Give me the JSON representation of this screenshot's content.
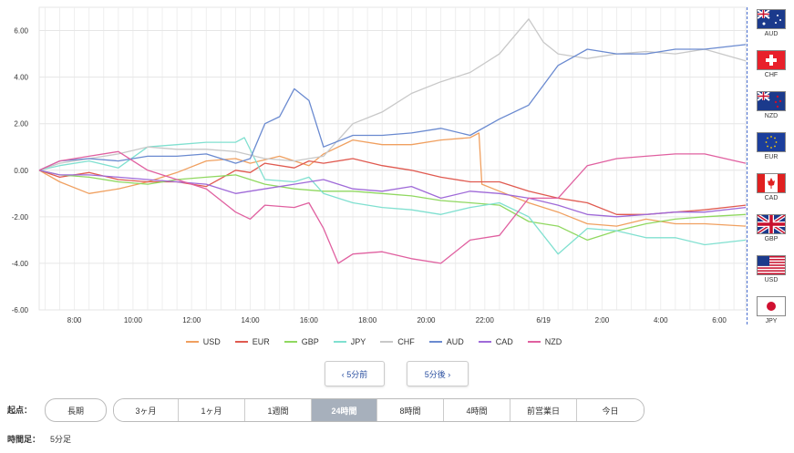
{
  "chart_data": {
    "type": "line",
    "ylim": [
      -6,
      7
    ],
    "yticks": [
      "6.00",
      "4.00",
      "2.00",
      "0.00",
      "-2.00",
      "-4.00",
      "-6.00"
    ],
    "ytick_values": [
      6,
      4,
      2,
      0,
      -2,
      -4,
      -6
    ],
    "xticks": [
      {
        "label": "8:00",
        "x": 1.5
      },
      {
        "label": "10:00",
        "x": 3.5
      },
      {
        "label": "12:00",
        "x": 5.5
      },
      {
        "label": "14:00",
        "x": 7.5
      },
      {
        "label": "16:00",
        "x": 9.5
      },
      {
        "label": "18:00",
        "x": 11.5
      },
      {
        "label": "20:00",
        "x": 13.5
      },
      {
        "label": "22:00",
        "x": 15.5
      },
      {
        "label": "6/19",
        "x": 17.5
      },
      {
        "label": "2:00",
        "x": 19.5
      },
      {
        "label": "4:00",
        "x": 21.5
      },
      {
        "label": "6:00",
        "x": 23.5
      }
    ],
    "xlim": [
      0.3,
      24.4
    ],
    "grid": true,
    "legend_position": "bottom",
    "series": [
      {
        "name": "USD",
        "color": "#f0a060",
        "points": [
          [
            0.3,
            0
          ],
          [
            1,
            -0.5
          ],
          [
            2,
            -1.0
          ],
          [
            3,
            -0.8
          ],
          [
            4,
            -0.5
          ],
          [
            5,
            -0.1
          ],
          [
            6,
            0.4
          ],
          [
            7,
            0.5
          ],
          [
            7.5,
            0.3
          ],
          [
            8.5,
            0.6
          ],
          [
            9.5,
            0.2
          ],
          [
            10,
            0.7
          ],
          [
            11,
            1.3
          ],
          [
            12,
            1.1
          ],
          [
            13,
            1.1
          ],
          [
            14,
            1.3
          ],
          [
            15,
            1.4
          ],
          [
            15.3,
            1.6
          ],
          [
            15.4,
            -0.6
          ],
          [
            16,
            -0.9
          ],
          [
            17,
            -1.4
          ],
          [
            18,
            -1.8
          ],
          [
            19,
            -2.3
          ],
          [
            20,
            -2.4
          ],
          [
            21,
            -2.1
          ],
          [
            22,
            -2.3
          ],
          [
            23,
            -2.3
          ],
          [
            24.4,
            -2.4
          ]
        ]
      },
      {
        "name": "EUR",
        "color": "#e05a50",
        "points": [
          [
            0.3,
            0
          ],
          [
            1,
            -0.3
          ],
          [
            2,
            -0.1
          ],
          [
            3,
            -0.4
          ],
          [
            4,
            -0.5
          ],
          [
            5,
            -0.5
          ],
          [
            6,
            -0.7
          ],
          [
            7,
            0.0
          ],
          [
            7.5,
            -0.1
          ],
          [
            8,
            0.3
          ],
          [
            9,
            0.1
          ],
          [
            9.5,
            0.4
          ],
          [
            10,
            0.3
          ],
          [
            11,
            0.5
          ],
          [
            12,
            0.2
          ],
          [
            13,
            0.0
          ],
          [
            14,
            -0.3
          ],
          [
            15,
            -0.5
          ],
          [
            16,
            -0.5
          ],
          [
            17,
            -0.9
          ],
          [
            18,
            -1.2
          ],
          [
            19,
            -1.4
          ],
          [
            20,
            -1.9
          ],
          [
            21,
            -1.9
          ],
          [
            22,
            -1.8
          ],
          [
            23,
            -1.7
          ],
          [
            24.4,
            -1.5
          ]
        ]
      },
      {
        "name": "GBP",
        "color": "#90d860",
        "points": [
          [
            0.3,
            0
          ],
          [
            1,
            -0.2
          ],
          [
            2,
            -0.3
          ],
          [
            3,
            -0.5
          ],
          [
            4,
            -0.6
          ],
          [
            5,
            -0.4
          ],
          [
            6,
            -0.3
          ],
          [
            7,
            -0.2
          ],
          [
            8,
            -0.6
          ],
          [
            9,
            -0.8
          ],
          [
            10,
            -0.9
          ],
          [
            11,
            -0.9
          ],
          [
            12,
            -1.0
          ],
          [
            13,
            -1.1
          ],
          [
            14,
            -1.3
          ],
          [
            15,
            -1.4
          ],
          [
            16,
            -1.5
          ],
          [
            17,
            -2.2
          ],
          [
            18,
            -2.4
          ],
          [
            19,
            -3.0
          ],
          [
            20,
            -2.6
          ],
          [
            21,
            -2.3
          ],
          [
            22,
            -2.1
          ],
          [
            23,
            -2.0
          ],
          [
            24.4,
            -1.9
          ]
        ]
      },
      {
        "name": "JPY",
        "color": "#80e0d0",
        "points": [
          [
            0.3,
            0
          ],
          [
            1,
            0.2
          ],
          [
            2,
            0.4
          ],
          [
            3,
            0.1
          ],
          [
            4,
            1.0
          ],
          [
            5,
            1.1
          ],
          [
            6,
            1.2
          ],
          [
            7,
            1.2
          ],
          [
            7.3,
            1.4
          ],
          [
            8,
            -0.4
          ],
          [
            9,
            -0.5
          ],
          [
            9.5,
            -0.3
          ],
          [
            10,
            -1.0
          ],
          [
            11,
            -1.4
          ],
          [
            12,
            -1.6
          ],
          [
            13,
            -1.7
          ],
          [
            14,
            -1.9
          ],
          [
            15,
            -1.6
          ],
          [
            16,
            -1.4
          ],
          [
            17,
            -2.0
          ],
          [
            18,
            -3.6
          ],
          [
            19,
            -2.5
          ],
          [
            20,
            -2.6
          ],
          [
            21,
            -2.9
          ],
          [
            22,
            -2.9
          ],
          [
            23,
            -3.2
          ],
          [
            24.4,
            -3.0
          ]
        ]
      },
      {
        "name": "CHF",
        "color": "#c8c8c8",
        "points": [
          [
            0.3,
            0
          ],
          [
            1,
            0.3
          ],
          [
            2,
            0.5
          ],
          [
            3,
            0.7
          ],
          [
            4,
            1.0
          ],
          [
            5,
            0.9
          ],
          [
            6,
            0.9
          ],
          [
            7,
            0.8
          ],
          [
            8,
            0.5
          ],
          [
            9,
            0.4
          ],
          [
            10,
            0.6
          ],
          [
            11,
            2.0
          ],
          [
            12,
            2.5
          ],
          [
            13,
            3.3
          ],
          [
            14,
            3.8
          ],
          [
            15,
            4.2
          ],
          [
            16,
            5.0
          ],
          [
            17,
            6.5
          ],
          [
            17.5,
            5.5
          ],
          [
            18,
            5.0
          ],
          [
            19,
            4.8
          ],
          [
            20,
            5.0
          ],
          [
            21,
            5.1
          ],
          [
            22,
            5.0
          ],
          [
            23,
            5.2
          ],
          [
            24.4,
            4.7
          ]
        ]
      },
      {
        "name": "AUD",
        "color": "#6a8ad0",
        "points": [
          [
            0.3,
            0
          ],
          [
            1,
            0.4
          ],
          [
            2,
            0.5
          ],
          [
            3,
            0.4
          ],
          [
            4,
            0.6
          ],
          [
            5,
            0.6
          ],
          [
            6,
            0.7
          ],
          [
            7,
            0.3
          ],
          [
            7.5,
            0.5
          ],
          [
            8,
            2.0
          ],
          [
            8.5,
            2.3
          ],
          [
            9,
            3.5
          ],
          [
            9.5,
            3.0
          ],
          [
            10,
            1.0
          ],
          [
            11,
            1.5
          ],
          [
            12,
            1.5
          ],
          [
            13,
            1.6
          ],
          [
            14,
            1.8
          ],
          [
            15,
            1.5
          ],
          [
            16,
            2.2
          ],
          [
            17,
            2.8
          ],
          [
            18,
            4.5
          ],
          [
            19,
            5.2
          ],
          [
            20,
            5.0
          ],
          [
            21,
            5.0
          ],
          [
            22,
            5.2
          ],
          [
            23,
            5.2
          ],
          [
            24.4,
            5.4
          ]
        ]
      },
      {
        "name": "CAD",
        "color": "#9f6ad8",
        "points": [
          [
            0.3,
            0
          ],
          [
            1,
            -0.2
          ],
          [
            2,
            -0.2
          ],
          [
            3,
            -0.3
          ],
          [
            4,
            -0.4
          ],
          [
            5,
            -0.5
          ],
          [
            6,
            -0.6
          ],
          [
            7,
            -1.0
          ],
          [
            8,
            -0.8
          ],
          [
            9,
            -0.6
          ],
          [
            10,
            -0.4
          ],
          [
            11,
            -0.8
          ],
          [
            12,
            -0.9
          ],
          [
            13,
            -0.7
          ],
          [
            14,
            -1.2
          ],
          [
            15,
            -0.9
          ],
          [
            16,
            -1.0
          ],
          [
            17,
            -1.2
          ],
          [
            18,
            -1.5
          ],
          [
            19,
            -1.9
          ],
          [
            20,
            -2.0
          ],
          [
            21,
            -1.9
          ],
          [
            22,
            -1.8
          ],
          [
            23,
            -1.8
          ],
          [
            24.4,
            -1.6
          ]
        ]
      },
      {
        "name": "NZD",
        "color": "#e060a0",
        "points": [
          [
            0.3,
            0
          ],
          [
            1,
            0.4
          ],
          [
            2,
            0.6
          ],
          [
            3,
            0.8
          ],
          [
            4,
            0.0
          ],
          [
            5,
            -0.4
          ],
          [
            6,
            -0.8
          ],
          [
            7,
            -1.8
          ],
          [
            7.5,
            -2.1
          ],
          [
            8,
            -1.5
          ],
          [
            9,
            -1.6
          ],
          [
            9.5,
            -1.4
          ],
          [
            10,
            -2.5
          ],
          [
            10.5,
            -4.0
          ],
          [
            11,
            -3.6
          ],
          [
            12,
            -3.5
          ],
          [
            13,
            -3.8
          ],
          [
            14,
            -4.0
          ],
          [
            15,
            -3.0
          ],
          [
            16,
            -2.8
          ],
          [
            17,
            -1.2
          ],
          [
            18,
            -1.2
          ],
          [
            19,
            0.2
          ],
          [
            20,
            0.5
          ],
          [
            21,
            0.6
          ],
          [
            22,
            0.7
          ],
          [
            23,
            0.7
          ],
          [
            24.4,
            0.3
          ]
        ]
      }
    ]
  },
  "flags": [
    {
      "code": "AUD",
      "icon": "australia-flag-icon"
    },
    {
      "code": "CHF",
      "icon": "switzerland-flag-icon"
    },
    {
      "code": "NZD",
      "icon": "new-zealand-flag-icon"
    },
    {
      "code": "EUR",
      "icon": "eu-flag-icon"
    },
    {
      "code": "CAD",
      "icon": "canada-flag-icon"
    },
    {
      "code": "GBP",
      "icon": "uk-flag-icon"
    },
    {
      "code": "USD",
      "icon": "usa-flag-icon"
    },
    {
      "code": "JPY",
      "icon": "japan-flag-icon"
    }
  ],
  "nav": {
    "prev": "‹ 5分前",
    "next": "5分後 ›"
  },
  "controls": {
    "start_label": "起点：",
    "start_value": "長期",
    "ranges": [
      "3ヶ月",
      "1ヶ月",
      "1週間",
      "24時間",
      "8時間",
      "4時間",
      "前営業日",
      "今日"
    ],
    "active_range": "24時間",
    "interval_label": "時間足：",
    "interval_value": "5分足"
  }
}
